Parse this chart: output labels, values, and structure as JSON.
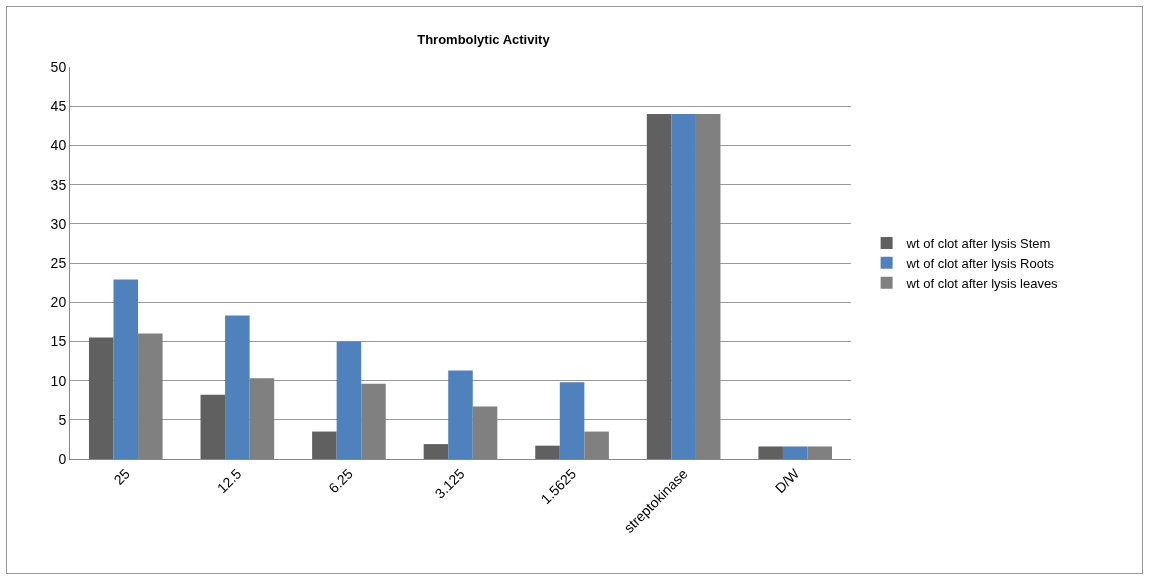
{
  "chart_data": {
    "type": "bar",
    "title": "Thrombolytic Activity",
    "categories": [
      "25",
      "12.5",
      "6.25",
      "3.125",
      "1.5625",
      "streptokinase",
      "D/W"
    ],
    "series": [
      {
        "name": "wt of clot after lysis Stem",
        "color": "#606060",
        "values": [
          15.5,
          8.2,
          3.5,
          1.9,
          1.7,
          44.0,
          1.6
        ]
      },
      {
        "name": "wt of clot after lysis Roots",
        "color": "#4f81bd",
        "values": [
          22.9,
          18.3,
          15.0,
          11.3,
          9.8,
          44.0,
          1.6
        ]
      },
      {
        "name": "wt of clot after lysis leaves",
        "color": "#808080",
        "values": [
          16.0,
          10.3,
          9.6,
          6.7,
          3.5,
          44.0,
          1.6
        ]
      }
    ],
    "ylim": [
      0,
      50
    ],
    "yticks": [
      0,
      5,
      10,
      15,
      20,
      25,
      30,
      35,
      40,
      45,
      50
    ],
    "grid": "y",
    "legend": "right"
  }
}
